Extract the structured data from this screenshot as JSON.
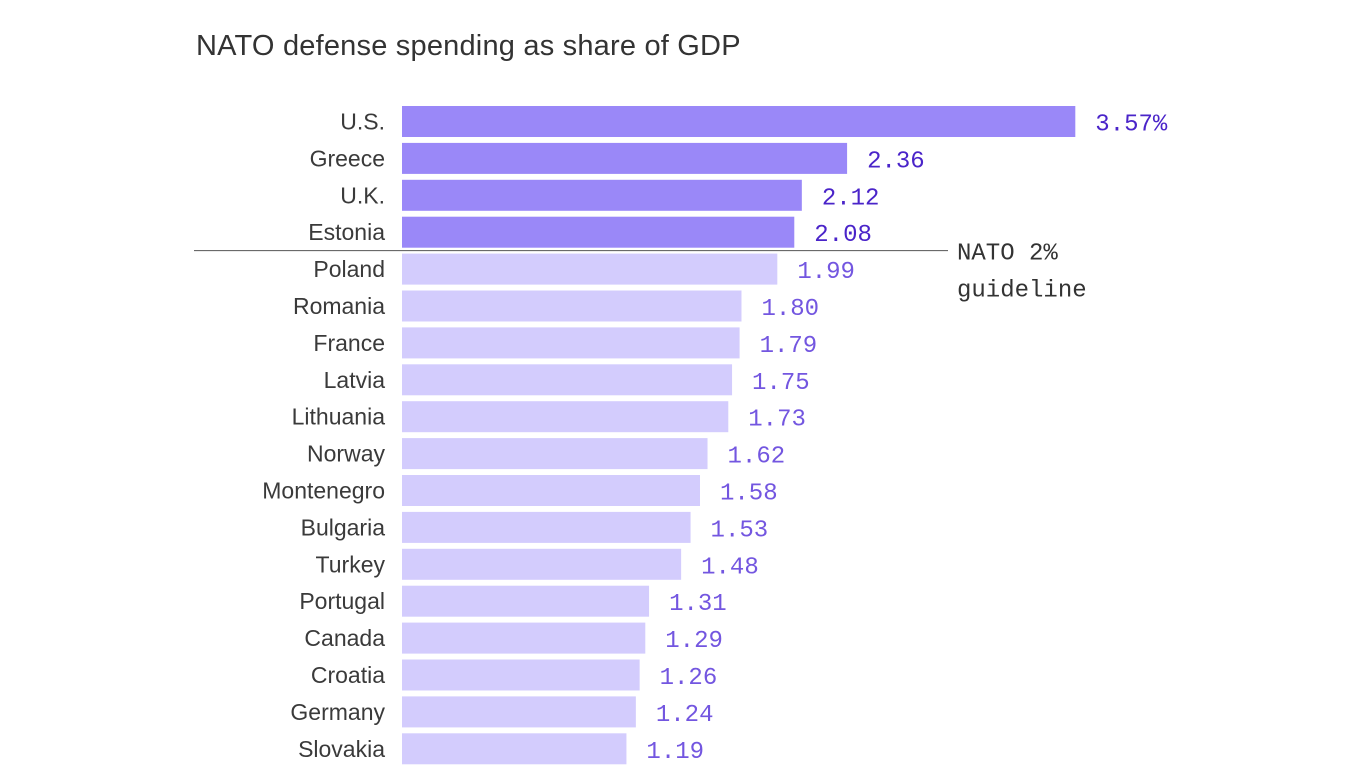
{
  "chart_data": {
    "type": "bar",
    "orientation": "horizontal",
    "title": "NATO defense spending as share of GDP",
    "categories": [
      "U.S.",
      "Greece",
      "U.K.",
      "Estonia",
      "Poland",
      "Romania",
      "France",
      "Latvia",
      "Lithuania",
      "Norway",
      "Montenegro",
      "Bulgaria",
      "Turkey",
      "Portugal",
      "Canada",
      "Croatia",
      "Germany",
      "Slovakia"
    ],
    "values": [
      3.57,
      2.36,
      2.12,
      2.08,
      1.99,
      1.8,
      1.79,
      1.75,
      1.73,
      1.62,
      1.58,
      1.53,
      1.48,
      1.31,
      1.29,
      1.26,
      1.24,
      1.19
    ],
    "value_labels": [
      "3.57%",
      "2.36",
      "2.12",
      "2.08",
      "1.99",
      "1.80",
      "1.79",
      "1.75",
      "1.73",
      "1.62",
      "1.58",
      "1.53",
      "1.48",
      "1.31",
      "1.29",
      "1.26",
      "1.24",
      "1.19"
    ],
    "reference_line": {
      "value": 2,
      "label_line1": "NATO 2%",
      "label_line2": "guideline"
    },
    "colors": {
      "above_guideline": "#9a88f8",
      "below_guideline": "#d3ccfd",
      "value_text_above": "#4a24c9",
      "value_text_below": "#7356e0",
      "reference_line": "#555555"
    },
    "grid": false,
    "xlabel": "",
    "ylabel": ""
  }
}
